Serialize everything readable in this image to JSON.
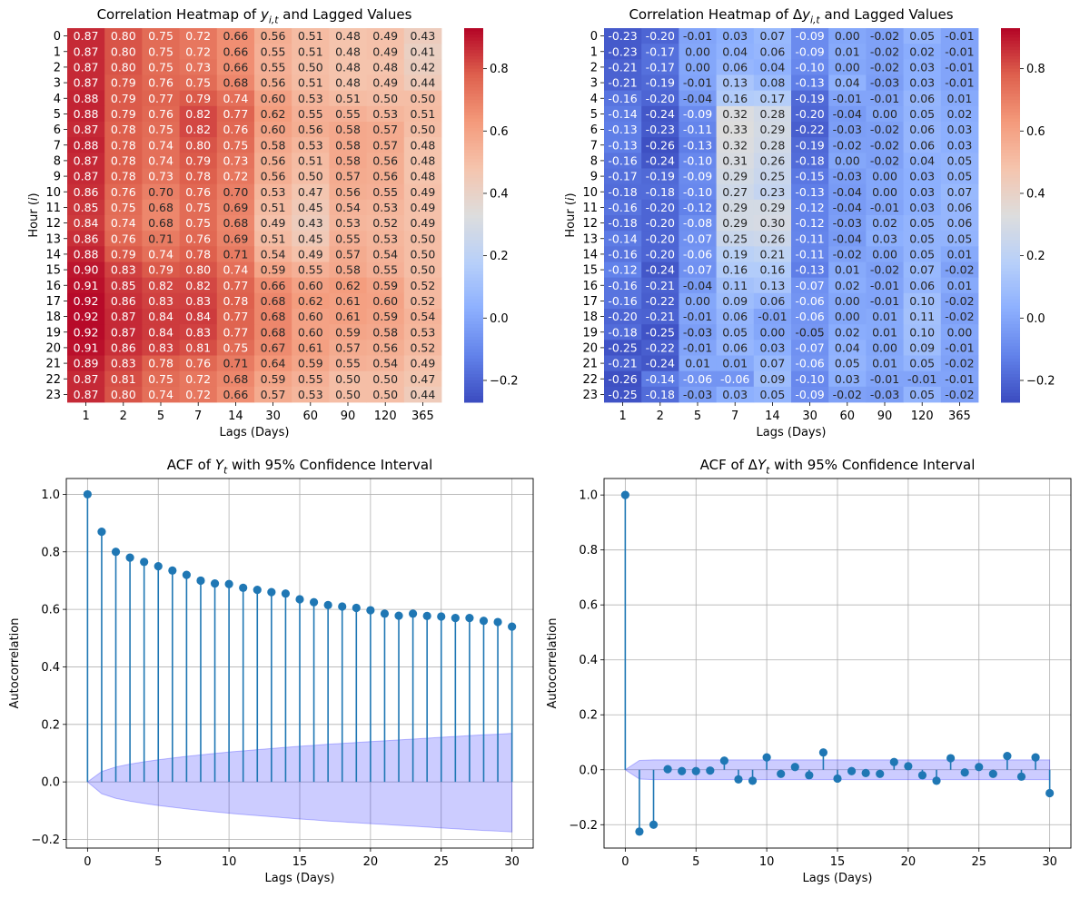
{
  "chart_data": [
    {
      "type": "heatmap",
      "title": "Correlation Heatmap of y_{i,t} and Lagged Values",
      "title_parts": [
        "Correlation Heatmap of ",
        "y",
        "i,t",
        " and Lagged Values"
      ],
      "xlabel": "Lags (Days)",
      "ylabel_parts": [
        "Hour (",
        "i",
        ")"
      ],
      "x": [
        "1",
        "2",
        "5",
        "7",
        "14",
        "30",
        "60",
        "90",
        "120",
        "365"
      ],
      "y": [
        "0",
        "1",
        "2",
        "3",
        "4",
        "5",
        "6",
        "7",
        "8",
        "9",
        "10",
        "11",
        "12",
        "13",
        "14",
        "15",
        "16",
        "17",
        "18",
        "19",
        "20",
        "21",
        "22",
        "23"
      ],
      "values": [
        [
          0.87,
          0.8,
          0.75,
          0.72,
          0.66,
          0.56,
          0.51,
          0.48,
          0.49,
          0.43
        ],
        [
          0.87,
          0.8,
          0.75,
          0.72,
          0.66,
          0.55,
          0.51,
          0.48,
          0.49,
          0.41
        ],
        [
          0.87,
          0.8,
          0.75,
          0.73,
          0.66,
          0.55,
          0.5,
          0.48,
          0.48,
          0.42
        ],
        [
          0.87,
          0.79,
          0.76,
          0.75,
          0.68,
          0.56,
          0.51,
          0.48,
          0.49,
          0.44
        ],
        [
          0.88,
          0.79,
          0.77,
          0.79,
          0.74,
          0.6,
          0.53,
          0.51,
          0.5,
          0.5
        ],
        [
          0.88,
          0.79,
          0.76,
          0.82,
          0.77,
          0.62,
          0.55,
          0.55,
          0.53,
          0.51
        ],
        [
          0.87,
          0.78,
          0.75,
          0.82,
          0.76,
          0.6,
          0.56,
          0.58,
          0.57,
          0.5
        ],
        [
          0.88,
          0.78,
          0.74,
          0.8,
          0.75,
          0.58,
          0.53,
          0.58,
          0.57,
          0.48
        ],
        [
          0.87,
          0.78,
          0.74,
          0.79,
          0.73,
          0.56,
          0.51,
          0.58,
          0.56,
          0.48
        ],
        [
          0.87,
          0.78,
          0.73,
          0.78,
          0.72,
          0.56,
          0.5,
          0.57,
          0.56,
          0.48
        ],
        [
          0.86,
          0.76,
          0.7,
          0.76,
          0.7,
          0.53,
          0.47,
          0.56,
          0.55,
          0.49
        ],
        [
          0.85,
          0.75,
          0.68,
          0.75,
          0.69,
          0.51,
          0.45,
          0.54,
          0.53,
          0.49
        ],
        [
          0.84,
          0.74,
          0.68,
          0.75,
          0.68,
          0.49,
          0.43,
          0.53,
          0.52,
          0.49
        ],
        [
          0.86,
          0.76,
          0.71,
          0.76,
          0.69,
          0.51,
          0.45,
          0.55,
          0.53,
          0.5
        ],
        [
          0.88,
          0.79,
          0.74,
          0.78,
          0.71,
          0.54,
          0.49,
          0.57,
          0.54,
          0.5
        ],
        [
          0.9,
          0.83,
          0.79,
          0.8,
          0.74,
          0.59,
          0.55,
          0.58,
          0.55,
          0.5
        ],
        [
          0.91,
          0.85,
          0.82,
          0.82,
          0.77,
          0.66,
          0.6,
          0.62,
          0.59,
          0.52
        ],
        [
          0.92,
          0.86,
          0.83,
          0.83,
          0.78,
          0.68,
          0.62,
          0.61,
          0.6,
          0.52
        ],
        [
          0.92,
          0.87,
          0.84,
          0.84,
          0.77,
          0.68,
          0.6,
          0.61,
          0.59,
          0.54
        ],
        [
          0.92,
          0.87,
          0.84,
          0.83,
          0.77,
          0.68,
          0.6,
          0.59,
          0.58,
          0.53
        ],
        [
          0.91,
          0.86,
          0.83,
          0.81,
          0.75,
          0.67,
          0.61,
          0.57,
          0.56,
          0.52
        ],
        [
          0.89,
          0.83,
          0.78,
          0.76,
          0.71,
          0.64,
          0.59,
          0.55,
          0.54,
          0.49
        ],
        [
          0.87,
          0.81,
          0.75,
          0.72,
          0.68,
          0.59,
          0.55,
          0.5,
          0.5,
          0.47
        ],
        [
          0.87,
          0.8,
          0.74,
          0.72,
          0.66,
          0.57,
          0.53,
          0.5,
          0.5,
          0.44
        ]
      ],
      "colormap": "coolwarm",
      "vmin": -0.27,
      "vmax": 0.93,
      "colorbar_ticks": [
        "-0.2",
        "0.0",
        "0.2",
        "0.4",
        "0.6",
        "0.8"
      ]
    },
    {
      "type": "heatmap",
      "title": "Correlation Heatmap of Δy_{i,t} and Lagged Values",
      "title_parts": [
        "Correlation Heatmap of Δ",
        "y",
        "i,t",
        " and Lagged Values"
      ],
      "xlabel": "Lags (Days)",
      "ylabel_parts": [
        "Hour (",
        "i",
        ")"
      ],
      "x": [
        "1",
        "2",
        "5",
        "7",
        "14",
        "30",
        "60",
        "90",
        "120",
        "365"
      ],
      "y": [
        "0",
        "1",
        "2",
        "3",
        "4",
        "5",
        "6",
        "7",
        "8",
        "9",
        "10",
        "11",
        "12",
        "13",
        "14",
        "15",
        "16",
        "17",
        "18",
        "19",
        "20",
        "21",
        "22",
        "23"
      ],
      "values": [
        [
          -0.23,
          -0.2,
          -0.01,
          0.03,
          0.07,
          -0.09,
          -0.0,
          -0.02,
          0.05,
          -0.01
        ],
        [
          -0.23,
          -0.17,
          -0.0,
          0.04,
          0.06,
          -0.09,
          0.01,
          -0.02,
          0.02,
          -0.01
        ],
        [
          -0.21,
          -0.17,
          0.0,
          0.06,
          0.04,
          -0.1,
          -0.0,
          -0.02,
          0.03,
          -0.01
        ],
        [
          -0.21,
          -0.19,
          -0.01,
          0.13,
          0.08,
          -0.13,
          0.04,
          -0.03,
          0.03,
          -0.01
        ],
        [
          -0.16,
          -0.2,
          -0.04,
          0.16,
          0.17,
          -0.19,
          -0.01,
          -0.01,
          0.06,
          0.01
        ],
        [
          -0.14,
          -0.24,
          -0.09,
          0.32,
          0.28,
          -0.2,
          -0.04,
          -0.0,
          0.05,
          0.02
        ],
        [
          -0.13,
          -0.23,
          -0.11,
          0.33,
          0.29,
          -0.22,
          -0.03,
          -0.02,
          0.06,
          0.03
        ],
        [
          -0.13,
          -0.26,
          -0.13,
          0.32,
          0.28,
          -0.19,
          -0.02,
          -0.02,
          0.06,
          0.03
        ],
        [
          -0.16,
          -0.24,
          -0.1,
          0.31,
          0.26,
          -0.18,
          -0.0,
          -0.02,
          0.04,
          0.05
        ],
        [
          -0.17,
          -0.19,
          -0.09,
          0.29,
          0.25,
          -0.15,
          -0.03,
          0.0,
          0.03,
          0.05
        ],
        [
          -0.18,
          -0.18,
          -0.1,
          0.27,
          0.23,
          -0.13,
          -0.04,
          -0.0,
          0.03,
          0.07
        ],
        [
          -0.16,
          -0.2,
          -0.12,
          0.29,
          0.29,
          -0.12,
          -0.04,
          -0.01,
          0.03,
          0.06
        ],
        [
          -0.18,
          -0.2,
          -0.08,
          0.29,
          0.3,
          -0.12,
          -0.03,
          0.02,
          0.05,
          0.06
        ],
        [
          -0.14,
          -0.2,
          -0.07,
          0.25,
          0.26,
          -0.11,
          -0.04,
          0.03,
          0.05,
          0.05
        ],
        [
          -0.16,
          -0.2,
          -0.06,
          0.19,
          0.21,
          -0.11,
          -0.02,
          -0.0,
          0.05,
          0.01
        ],
        [
          -0.12,
          -0.24,
          -0.07,
          0.16,
          0.16,
          -0.13,
          0.01,
          -0.02,
          0.07,
          -0.02
        ],
        [
          -0.16,
          -0.21,
          -0.04,
          0.11,
          0.13,
          -0.07,
          0.02,
          -0.01,
          0.06,
          0.01
        ],
        [
          -0.16,
          -0.22,
          0.0,
          0.09,
          0.06,
          -0.06,
          0.0,
          -0.01,
          0.1,
          -0.02
        ],
        [
          -0.2,
          -0.21,
          -0.01,
          0.06,
          -0.01,
          -0.06,
          -0.0,
          0.01,
          0.11,
          -0.02
        ],
        [
          -0.18,
          -0.25,
          -0.03,
          0.05,
          0.0,
          -0.05,
          0.02,
          0.01,
          0.1,
          0.0
        ],
        [
          -0.25,
          -0.22,
          -0.01,
          0.06,
          0.03,
          -0.07,
          0.04,
          -0.0,
          0.09,
          -0.01
        ],
        [
          -0.21,
          -0.24,
          0.01,
          0.01,
          0.07,
          -0.06,
          0.05,
          0.01,
          0.05,
          -0.02
        ],
        [
          -0.26,
          -0.14,
          -0.06,
          -0.06,
          0.09,
          -0.1,
          0.03,
          -0.01,
          -0.01,
          -0.01
        ],
        [
          -0.25,
          -0.18,
          -0.03,
          0.03,
          0.05,
          -0.09,
          -0.02,
          -0.03,
          0.05,
          -0.02
        ]
      ],
      "colormap": "coolwarm",
      "vmin": -0.27,
      "vmax": 0.93,
      "colorbar_ticks": [
        "-0.2",
        "0.0",
        "0.2",
        "0.4",
        "0.6",
        "0.8"
      ]
    },
    {
      "type": "scatter",
      "subtype": "stem",
      "title": "ACF of Y_t with 95% Confidence Interval",
      "title_parts": [
        "ACF of ",
        "Y",
        "t",
        " with 95% Confidence Interval"
      ],
      "xlabel": "Lags (Days)",
      "ylabel": "Autocorrelation",
      "x": [
        0,
        1,
        2,
        3,
        4,
        5,
        6,
        7,
        8,
        9,
        10,
        11,
        12,
        13,
        14,
        15,
        16,
        17,
        18,
        19,
        20,
        21,
        22,
        23,
        24,
        25,
        26,
        27,
        28,
        29,
        30
      ],
      "values": [
        1.0,
        0.87,
        0.8,
        0.78,
        0.765,
        0.75,
        0.735,
        0.72,
        0.7,
        0.69,
        0.688,
        0.675,
        0.668,
        0.66,
        0.655,
        0.635,
        0.625,
        0.615,
        0.61,
        0.605,
        0.597,
        0.585,
        0.578,
        0.585,
        0.577,
        0.575,
        0.57,
        0.57,
        0.56,
        0.556,
        0.54
      ],
      "confidence_band": [
        0,
        0.036,
        0.052,
        0.062,
        0.07,
        0.077,
        0.083,
        0.089,
        0.094,
        0.099,
        0.104,
        0.108,
        0.112,
        0.116,
        0.12,
        0.124,
        0.127,
        0.131,
        0.134,
        0.137,
        0.14,
        0.143,
        0.146,
        0.149,
        0.152,
        0.155,
        0.158,
        0.161,
        0.164,
        0.166,
        0.169
      ],
      "band_lower_offset": 0.005,
      "xlim": [
        -1.5,
        31.5
      ],
      "ylim": [
        -0.23,
        1.055
      ],
      "xticks": [
        0,
        5,
        10,
        15,
        20,
        25,
        30
      ],
      "yticks": [
        -0.2,
        0.0,
        0.2,
        0.4,
        0.6,
        0.8,
        1.0
      ],
      "grid": true
    },
    {
      "type": "scatter",
      "subtype": "stem",
      "title": "ACF of ΔY_t with 95% Confidence Interval",
      "title_parts": [
        "ACF of Δ",
        "Y",
        "t",
        " with 95% Confidence Interval"
      ],
      "xlabel": "Lags (Days)",
      "ylabel": "Autocorrelation",
      "x": [
        0,
        1,
        2,
        3,
        4,
        5,
        6,
        7,
        8,
        9,
        10,
        11,
        12,
        13,
        14,
        15,
        16,
        17,
        18,
        19,
        20,
        21,
        22,
        23,
        24,
        25,
        26,
        27,
        28,
        29,
        30
      ],
      "values": [
        1.0,
        -0.225,
        -0.2,
        0.002,
        -0.005,
        -0.005,
        -0.003,
        0.033,
        -0.035,
        -0.04,
        0.045,
        -0.015,
        0.01,
        -0.02,
        0.063,
        -0.032,
        -0.005,
        -0.012,
        -0.015,
        0.028,
        0.013,
        -0.02,
        -0.04,
        0.042,
        -0.01,
        0.01,
        -0.015,
        0.05,
        -0.025,
        0.045,
        -0.085
      ],
      "confidence_band": [
        0,
        0.034,
        0.036,
        0.036,
        0.036,
        0.036,
        0.036,
        0.036,
        0.036,
        0.036,
        0.036,
        0.036,
        0.036,
        0.036,
        0.036,
        0.036,
        0.036,
        0.036,
        0.036,
        0.036,
        0.036,
        0.036,
        0.036,
        0.036,
        0.036,
        0.036,
        0.036,
        0.036,
        0.036,
        0.036,
        0.036
      ],
      "band_lower_offset": 0,
      "xlim": [
        -1.5,
        31.5
      ],
      "ylim": [
        -0.285,
        1.06
      ],
      "xticks": [
        0,
        5,
        10,
        15,
        20,
        25,
        30
      ],
      "yticks": [
        -0.2,
        0.0,
        0.2,
        0.4,
        0.6,
        0.8,
        1.0
      ],
      "grid": true
    }
  ],
  "colors": {
    "stem": "#1f77b4",
    "band": "#0000ff",
    "grid": "#b0b0b0"
  }
}
